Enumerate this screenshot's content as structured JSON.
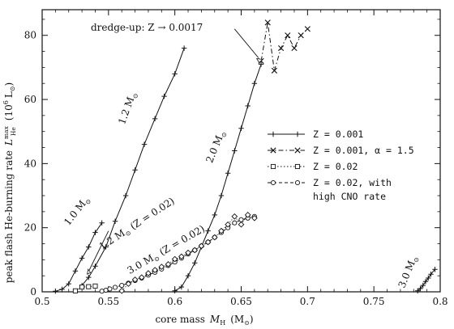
{
  "chart_data": {
    "type": "line",
    "xlabel_main": "core mass",
    "xlabel_var": "M",
    "xlabel_sub": "H",
    "xlabel_unit_open": "(M",
    "xlabel_unit_close": ")",
    "ylabel_main": "peak flash He-burning rate",
    "ylabel_var": "L",
    "ylabel_sup": "max",
    "ylabel_sub": "He",
    "ylabel_unit": "(10",
    "ylabel_unit_exp": "6",
    "ylabel_unit_close": "L",
    "xlim": [
      0.5,
      0.8
    ],
    "ylim": [
      0,
      88
    ],
    "x_ticks": [
      0.5,
      0.55,
      0.6,
      0.65,
      0.7,
      0.75,
      0.8
    ],
    "x_tick_labels": [
      "0.5",
      "0.55",
      "0.6",
      "0.65",
      "0.7",
      "0.75",
      "0.8"
    ],
    "y_ticks": [
      0,
      20,
      40,
      60,
      80
    ],
    "y_tick_labels": [
      "0",
      "20",
      "40",
      "60",
      "80"
    ],
    "series": [
      {
        "name": "Z = 0.001",
        "marker": "plus",
        "dash": "none",
        "color": "#111111",
        "curves": [
          {
            "x": [
              0.51,
              0.515,
              0.52,
              0.525,
              0.53,
              0.535,
              0.54,
              0.545
            ],
            "y": [
              0.2,
              0.8,
              2.5,
              6.5,
              10.5,
              14.0,
              18.5,
              21.5
            ]
          },
          {
            "x": [
              0.53,
              0.535,
              0.54,
              0.548,
              0.555,
              0.563,
              0.57,
              0.577,
              0.585,
              0.592,
              0.6,
              0.607
            ],
            "y": [
              2.0,
              4.5,
              8.0,
              14.0,
              22.0,
              30.0,
              38.0,
              46.0,
              54.0,
              61.0,
              68.0,
              76.0
            ]
          },
          {
            "x": [
              0.6,
              0.605,
              0.61,
              0.615,
              0.62,
              0.625,
              0.63,
              0.635,
              0.64,
              0.645,
              0.65,
              0.655,
              0.66,
              0.665
            ],
            "y": [
              0.3,
              1.5,
              5.0,
              9.0,
              14.0,
              19.0,
              24.0,
              30.0,
              37.0,
              44.0,
              51.0,
              58.0,
              65.0,
              71.0
            ]
          },
          {
            "x": [
              0.783,
              0.785,
              0.787,
              0.789,
              0.791,
              0.793,
              0.796
            ],
            "y": [
              0.3,
              1.0,
              2.0,
              3.2,
              4.3,
              5.5,
              7.0
            ]
          }
        ]
      },
      {
        "name": "Z = 0.001, α = 1.5",
        "marker": "cross",
        "dash": "6 3 1.5 3",
        "color": "#111111",
        "curves": [
          {
            "x": [
              0.665,
              0.67,
              0.675,
              0.68,
              0.685,
              0.69,
              0.695,
              0.7
            ],
            "y": [
              72.0,
              84.0,
              69.0,
              76.0,
              80.0,
              76.0,
              80.0,
              82.0
            ]
          }
        ]
      },
      {
        "name": "Z = 0.02",
        "marker": "square",
        "dash": "1.5 2.5",
        "color": "#111111",
        "curves": [
          {
            "x": [
              0.525,
              0.53,
              0.535,
              0.54
            ],
            "y": [
              0.3,
              1.5,
              1.6,
              1.8
            ]
          }
        ]
      },
      {
        "name": "Z = 0.02, with",
        "name_line2": "high CNO rate",
        "marker": "circle",
        "dash": "4 3",
        "color": "#111111",
        "curves": [
          {
            "x": [
              0.545,
              0.548,
              0.551,
              0.555,
              0.56,
              0.565,
              0.57,
              0.575,
              0.58,
              0.585,
              0.59,
              0.595,
              0.6,
              0.605,
              0.61,
              0.615,
              0.62,
              0.625,
              0.63,
              0.635,
              0.64,
              0.645,
              0.65,
              0.655,
              0.66
            ],
            "y": [
              0.2,
              0.5,
              0.9,
              1.4,
              2.0,
              2.7,
              3.5,
              4.3,
              5.2,
              6.1,
              7.1,
              8.2,
              9.3,
              10.5,
              11.8,
              13.0,
              14.3,
              15.5,
              17.0,
              18.5,
              20.0,
              21.5,
              22.5,
              23.0,
              23.5
            ]
          }
        ]
      }
    ],
    "diamond_curve": {
      "x": [
        0.56,
        0.565,
        0.57,
        0.575,
        0.58,
        0.585,
        0.59,
        0.595,
        0.6,
        0.605,
        0.61,
        0.615,
        0.62,
        0.625,
        0.63,
        0.635,
        0.64,
        0.645,
        0.65,
        0.655,
        0.66
      ],
      "y": [
        0.3,
        2.5,
        3.8,
        4.5,
        5.8,
        6.8,
        7.8,
        8.6,
        10.2,
        11.0,
        12.2,
        13.0,
        14.3,
        15.5,
        17.0,
        19.0,
        21.0,
        23.5,
        21.0,
        24.0,
        23.0
      ]
    },
    "annotations": [
      {
        "id": "ann-10",
        "text": "1.0 M",
        "sub": "⊙",
        "x": 0.52,
        "y": 20.5,
        "rotate": -52
      },
      {
        "id": "ann-12",
        "text": "1.2 M",
        "sub": "⊙",
        "x": 0.562,
        "y": 52,
        "rotate": -70
      },
      {
        "id": "ann-12z",
        "text": "1.2 M",
        "sub": "⊙",
        "suffix": " (Z = 0.02)",
        "x": 0.545,
        "y": 13,
        "rotate": -33
      },
      {
        "id": "ann-30z",
        "text": "3.0 M",
        "sub": "⊙",
        "suffix": " (Z = 0.02)",
        "x": 0.566,
        "y": 5.5,
        "rotate": -30
      },
      {
        "id": "ann-20",
        "text": "2.0 M",
        "sub": "⊙",
        "x": 0.628,
        "y": 40,
        "rotate": -68
      },
      {
        "id": "ann-30",
        "text": "3.0 M",
        "sub": "⊙",
        "x": 0.773,
        "y": 1,
        "rotate": -68
      }
    ],
    "dredge_label": "dredge-up: Z → 0.0017",
    "legend_position": "right"
  }
}
